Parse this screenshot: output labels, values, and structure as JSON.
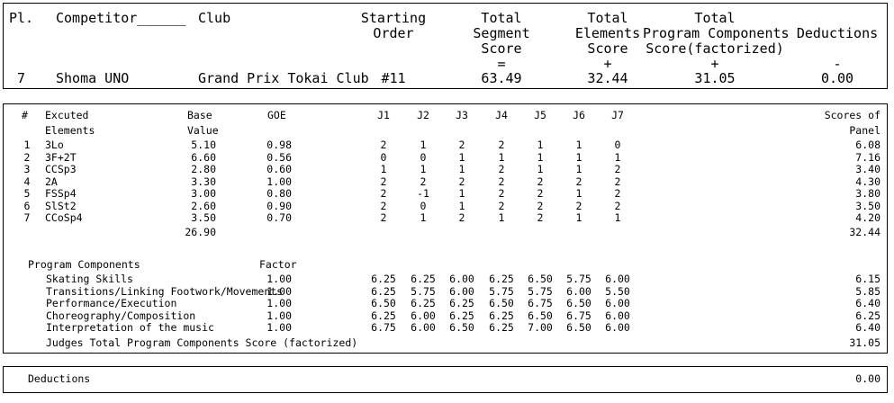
{
  "header": {
    "pl_label": "Pl.",
    "competitor_label": "Competitor______",
    "club_label": "Club",
    "starting_order_label": [
      "Starting",
      "Order"
    ],
    "tss_label": [
      "Total",
      "Segment",
      "Score",
      "="
    ],
    "tes_label": [
      "Total",
      "Elements",
      "Score",
      "+"
    ],
    "pcs_label": [
      "Total",
      "Program Components",
      "Score(factorized)",
      "+"
    ],
    "deductions_label": [
      "Deductions",
      "-"
    ],
    "place": "7",
    "competitor": "Shoma UNO",
    "club": "Grand Prix Tokai Club",
    "starting_order": "#11",
    "tss": "63.49",
    "tes": "32.44",
    "pcs": "31.05",
    "deductions": "0.00"
  },
  "elements": {
    "headers": {
      "num": "#",
      "executed": [
        "Excuted",
        "Elements"
      ],
      "base": [
        "Base",
        "Value"
      ],
      "goe": "GOE",
      "judges": [
        "J1",
        "J2",
        "J3",
        "J4",
        "J5",
        "J6",
        "J7"
      ],
      "panel": [
        "Scores of",
        "Panel"
      ]
    },
    "rows": [
      {
        "num": "1",
        "name": "3Lo",
        "base": "5.10",
        "goe": "0.98",
        "j": [
          "2",
          "1",
          "2",
          "2",
          "1",
          "1",
          "0"
        ],
        "panel": "6.08"
      },
      {
        "num": "2",
        "name": "3F+2T",
        "base": "6.60",
        "goe": "0.56",
        "j": [
          "0",
          "0",
          "1",
          "1",
          "1",
          "1",
          "1"
        ],
        "panel": "7.16"
      },
      {
        "num": "3",
        "name": "CCSp3",
        "base": "2.80",
        "goe": "0.60",
        "j": [
          "1",
          "1",
          "1",
          "2",
          "1",
          "1",
          "2"
        ],
        "panel": "3.40"
      },
      {
        "num": "4",
        "name": "2A",
        "base": "3.30",
        "goe": "1.00",
        "j": [
          "2",
          "2",
          "2",
          "2",
          "2",
          "2",
          "2"
        ],
        "panel": "4.30"
      },
      {
        "num": "5",
        "name": "FSSp4",
        "base": "3.00",
        "goe": "0.80",
        "j": [
          "2",
          "-1",
          "1",
          "2",
          "2",
          "1",
          "2"
        ],
        "panel": "3.80"
      },
      {
        "num": "6",
        "name": "SlSt2",
        "base": "2.60",
        "goe": "0.90",
        "j": [
          "2",
          "0",
          "1",
          "2",
          "2",
          "2",
          "2"
        ],
        "panel": "3.50"
      },
      {
        "num": "7",
        "name": "CCoSp4",
        "base": "3.50",
        "goe": "0.70",
        "j": [
          "2",
          "1",
          "2",
          "1",
          "2",
          "1",
          "1"
        ],
        "panel": "4.20"
      }
    ],
    "base_total": "26.90",
    "panel_total": "32.44"
  },
  "components": {
    "title": "Program Components",
    "factor_label": "Factor",
    "rows": [
      {
        "name": "Skating Skills",
        "factor": "1.00",
        "j": [
          "6.25",
          "6.25",
          "6.00",
          "6.25",
          "6.50",
          "5.75",
          "6.00"
        ],
        "score": "6.15"
      },
      {
        "name": "Transitions/Linking Footwork/Movements",
        "factor": "1.00",
        "j": [
          "6.25",
          "5.75",
          "6.00",
          "5.75",
          "5.75",
          "6.00",
          "5.50"
        ],
        "score": "5.85"
      },
      {
        "name": "Performance/Execution",
        "factor": "1.00",
        "j": [
          "6.50",
          "6.25",
          "6.25",
          "6.50",
          "6.75",
          "6.50",
          "6.00"
        ],
        "score": "6.40"
      },
      {
        "name": "Choreography/Composition",
        "factor": "1.00",
        "j": [
          "6.25",
          "6.00",
          "6.25",
          "6.25",
          "6.50",
          "6.75",
          "6.00"
        ],
        "score": "6.25"
      },
      {
        "name": "Interpretation of the music",
        "factor": "1.00",
        "j": [
          "6.75",
          "6.00",
          "6.50",
          "6.25",
          "7.00",
          "6.50",
          "6.00"
        ],
        "score": "6.40"
      }
    ],
    "total_label": "Judges Total Program Components Score (factorized)",
    "total": "31.05"
  },
  "footer": {
    "deductions_label": "Deductions",
    "deductions_value": "0.00"
  }
}
